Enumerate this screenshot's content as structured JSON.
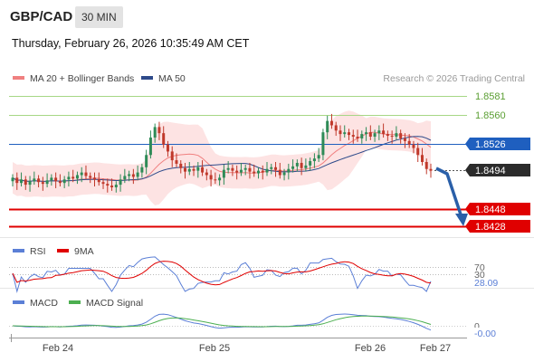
{
  "header": {
    "symbol": "GBP/CAD",
    "timeframe": "30 MIN",
    "datetime": "Thursday, February 26, 2026 10:35:49 AM CET"
  },
  "legend": {
    "ma20": "MA 20 + Bollinger Bands",
    "ma50": "MA 50",
    "credit": "Research © 2026 Trading Central",
    "ma20_color": "#f08080",
    "ma50_color": "#2e4a8a"
  },
  "colors": {
    "bull": "#2e8b57",
    "bear": "#c0392b",
    "resistance": "#a6d785",
    "pivot": "#1f5fbf",
    "support": "#e00000",
    "band_fill": "#fde3e3",
    "arrow": "#2a5fa8"
  },
  "levels": {
    "r2": "1.8581",
    "r1": "1.8560",
    "pivot": "1.8526",
    "last": "1.8494",
    "s1": "1.8448",
    "s2": "1.8428"
  },
  "rsi_panel": {
    "rsi_label": "RSI",
    "ma_label": "9MA",
    "level_70": "70",
    "level_30": "30",
    "value": "28.09",
    "rsi_color": "#5b7fd6",
    "ma_color": "#e00000"
  },
  "macd_panel": {
    "macd_label": "MACD",
    "signal_label": "MACD Signal",
    "zero": "0",
    "value": "-0.00",
    "macd_color": "#5b7fd6",
    "signal_color": "#4caf50"
  },
  "x_axis": {
    "ticks": [
      "Feb 24",
      "Feb 25",
      "Feb 26",
      "Feb 27"
    ]
  },
  "chart_data": {
    "type": "candlestick",
    "symbol": "GBP/CAD",
    "timeframe": "30 MIN",
    "y_range": [
      1.8418,
      1.859
    ],
    "levels": {
      "resistance_2": 1.8581,
      "resistance_1": 1.856,
      "pivot": 1.8526,
      "last": 1.8494,
      "support_1": 1.8448,
      "support_2": 1.8428
    },
    "candles_close": [
      1.8486,
      1.848,
      1.8484,
      1.8478,
      1.8482,
      1.8485,
      1.8481,
      1.8479,
      1.8483,
      1.8486,
      1.8482,
      1.848,
      1.8484,
      1.8487,
      1.8485,
      1.8489,
      1.8492,
      1.8488,
      1.8486,
      1.8484,
      1.8481,
      1.8479,
      1.8477,
      1.8475,
      1.8478,
      1.8484,
      1.8488,
      1.849,
      1.8487,
      1.8492,
      1.8498,
      1.8512,
      1.8532,
      1.8544,
      1.8537,
      1.8524,
      1.8516,
      1.8506,
      1.8502,
      1.8497,
      1.8493,
      1.8496,
      1.8494,
      1.8498,
      1.8492,
      1.8489,
      1.8484,
      1.8483,
      1.8486,
      1.8495,
      1.8497,
      1.8494,
      1.8492,
      1.8495,
      1.8497,
      1.8493,
      1.8491,
      1.8494,
      1.8492,
      1.8496,
      1.8498,
      1.8495,
      1.8489,
      1.8492,
      1.8496,
      1.8499,
      1.8503,
      1.8497,
      1.85,
      1.8505,
      1.8508,
      1.8512,
      1.8538,
      1.8551,
      1.8546,
      1.854,
      1.8536,
      1.8538,
      1.8535,
      1.8533,
      1.8531,
      1.8536,
      1.8538,
      1.8533,
      1.8537,
      1.854,
      1.8536,
      1.8534,
      1.8533,
      1.8537,
      1.8531,
      1.8528,
      1.8524,
      1.852,
      1.8512,
      1.8504,
      1.8496,
      1.8494
    ],
    "rsi": {
      "value": 28.09,
      "levels": [
        70,
        30
      ]
    },
    "macd": {
      "value": -0.0,
      "zero": 0
    },
    "x_ticks": [
      "Feb 24",
      "Feb 25",
      "Feb 26",
      "Feb 27"
    ]
  }
}
